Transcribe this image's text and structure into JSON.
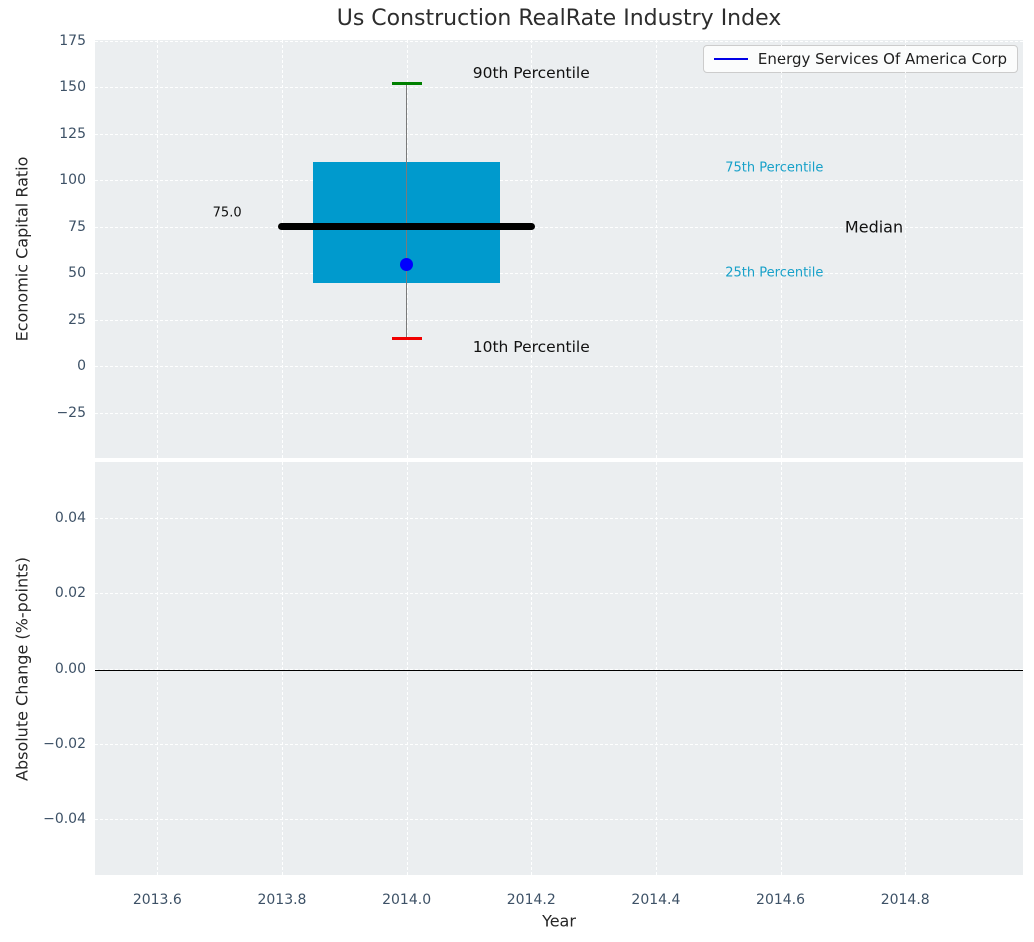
{
  "title": "Us Construction RealRate Industry Index",
  "legend": {
    "label": "Energy Services Of America Corp",
    "line_color": "#0000e6"
  },
  "chart_data": [
    {
      "type": "boxplot",
      "subplot": "top",
      "ylabel": "Economic Capital Ratio",
      "xlim": [
        2013.5,
        2014.989
      ],
      "ylim": [
        -49.2,
        175.5
      ],
      "yticks": [
        175,
        150,
        125,
        100,
        75,
        50,
        25,
        0,
        -25
      ],
      "ytick_labels": [
        "175",
        "150",
        "125",
        "100",
        "75",
        "50",
        "25",
        "0",
        "−25"
      ],
      "grid_x": [
        2013.6,
        2013.8,
        2014.0,
        2014.2,
        2014.4,
        2014.6,
        2014.8
      ],
      "grid_on": true,
      "box": {
        "x": 2014.0,
        "p10": 15,
        "p25": 45,
        "median": 75,
        "p75": 110,
        "p90": 152,
        "median_label": "75.0",
        "box_halfwidth_x": 0.15,
        "median_halfwidth_x": 0.2,
        "cap_halfwidth_x": 0.024,
        "company_point": {
          "name": "Energy Services Of America Corp",
          "x": 2014.0,
          "y": 55
        },
        "colors": {
          "box_fill": "#009acd",
          "median_line": "#000000",
          "p90_cap": "#008000",
          "p10_cap": "#f10000",
          "whisker": "#7a7a7a",
          "company_dot": "#0000ff"
        }
      },
      "annotations": [
        {
          "text": "90th Percentile",
          "x": 2014.2,
          "y": 157.5,
          "color": "#111111",
          "size": 15.5
        },
        {
          "text": "10th Percentile",
          "x": 2014.2,
          "y": 10.5,
          "color": "#111111",
          "size": 15.5
        },
        {
          "text": "75.0",
          "x": 2013.712,
          "y": 82.5,
          "color": "#111111",
          "size": 13
        },
        {
          "text": "75th Percentile",
          "x": 2014.59,
          "y": 106.5,
          "color": "#18a1c9",
          "size": 13
        },
        {
          "text": "Median",
          "x": 2014.75,
          "y": 75,
          "color": "#111111",
          "size": 16
        },
        {
          "text": "25th Percentile",
          "x": 2014.59,
          "y": 50,
          "color": "#18a1c9",
          "size": 13
        }
      ],
      "legend_position": "upper right"
    },
    {
      "type": "line",
      "subplot": "bottom",
      "ylabel": "Absolute Change (%-points)",
      "xlabel": "Year",
      "xlim": [
        2013.5,
        2014.989
      ],
      "ylim": [
        -0.055,
        0.055
      ],
      "yticks": [
        0.04,
        0.02,
        0.0,
        -0.02,
        -0.04
      ],
      "ytick_labels": [
        "0.04",
        "0.02",
        "0.00",
        "−0.02",
        "−0.04"
      ],
      "xticks": [
        2013.6,
        2013.8,
        2014.0,
        2014.2,
        2014.4,
        2014.6,
        2014.8
      ],
      "xtick_labels": [
        "2013.6",
        "2013.8",
        "2014.0",
        "2014.2",
        "2014.4",
        "2014.6",
        "2014.8"
      ],
      "grid_on": true,
      "zero_line_y": 0.0,
      "series": []
    }
  ],
  "colors": {
    "plot_background": "#ebeef0",
    "gridline": "#ffffff",
    "tick_label": "#3d5166",
    "title": "#2d2d2d"
  }
}
